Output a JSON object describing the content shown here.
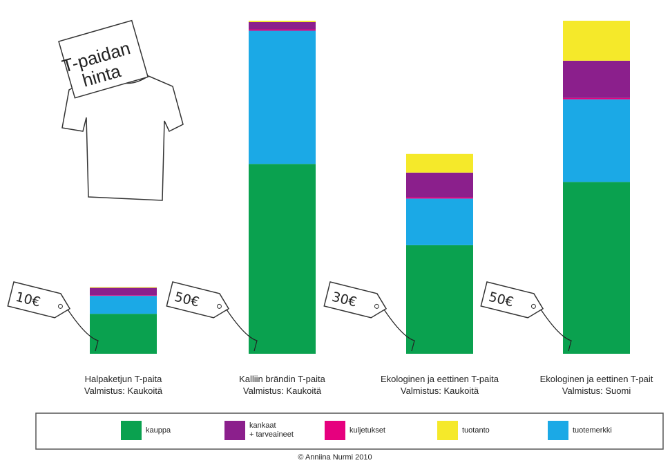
{
  "chart_data": {
    "type": "bar",
    "stacked": true,
    "title": "T-paidan\nhinta",
    "categories": [
      "Halpaketjun  T-paita\nValmistus: Kaukoitä",
      "Kalliin brändin T-paita\nValmistus: Kaukoitä",
      "Ekologinen ja eettinen T-paita\nValmistus: Kaukoitä",
      "Ekologinen ja eettinen T-pait\nValmistus: Suomi"
    ],
    "annotations": [
      "10€",
      "50€",
      "30€",
      "50€"
    ],
    "series": [
      {
        "name": "kauppa",
        "color": "#0aa14f",
        "values": [
          6,
          28.5,
          16.3,
          25.8
        ]
      },
      {
        "name": "tuotemerkki",
        "color": "#1ba9e6",
        "values": [
          2.7,
          20,
          7,
          12.4
        ]
      },
      {
        "name": "kuljetukset",
        "color": "#e6007e",
        "values": [
          0.1,
          0.2,
          0.2,
          0.2
        ]
      },
      {
        "name": "kankaat\n+ tarveaineet",
        "color": "#8b1f8c",
        "values": [
          1.1,
          1.1,
          3.7,
          5.6
        ]
      },
      {
        "name": "tuotanto",
        "color": "#f5e92a",
        "values": [
          0.1,
          0.2,
          2.8,
          6
        ]
      }
    ],
    "ylim": [
      0,
      50
    ],
    "credit": "© Anniina Nurmi 2010"
  }
}
